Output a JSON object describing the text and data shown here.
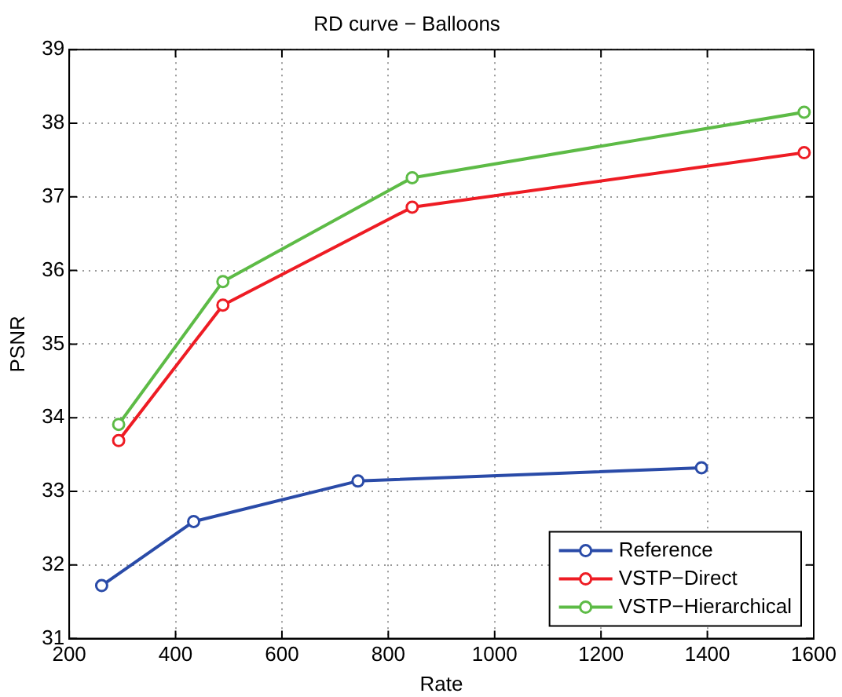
{
  "chart_data": {
    "type": "line",
    "title": "RD curve − Balloons",
    "xlabel": "Rate",
    "ylabel": "PSNR",
    "xlim": [
      200,
      1600
    ],
    "xticks": [
      200,
      400,
      600,
      800,
      1000,
      1200,
      1400,
      1600
    ],
    "ylim": [
      31,
      39
    ],
    "yticks": [
      31,
      32,
      33,
      34,
      35,
      36,
      37,
      38,
      39
    ],
    "grid": true,
    "legend": "bottom right",
    "marker": "circle",
    "line_style": "solid",
    "series": [
      {
        "name": "Reference",
        "color": "#2a4ba8",
        "x": [
          261,
          434,
          743,
          1389
        ],
        "values": [
          31.72,
          32.59,
          33.14,
          33.32
        ]
      },
      {
        "name": "VSTP−Direct",
        "color": "#ee1c24",
        "x": [
          293,
          489,
          845,
          1582
        ],
        "values": [
          33.69,
          35.53,
          36.86,
          37.6
        ]
      },
      {
        "name": "VSTP−Hierarchical",
        "color": "#5dbb46",
        "x": [
          293,
          489,
          845,
          1582
        ],
        "values": [
          33.91,
          35.85,
          37.26,
          38.15
        ]
      }
    ]
  }
}
